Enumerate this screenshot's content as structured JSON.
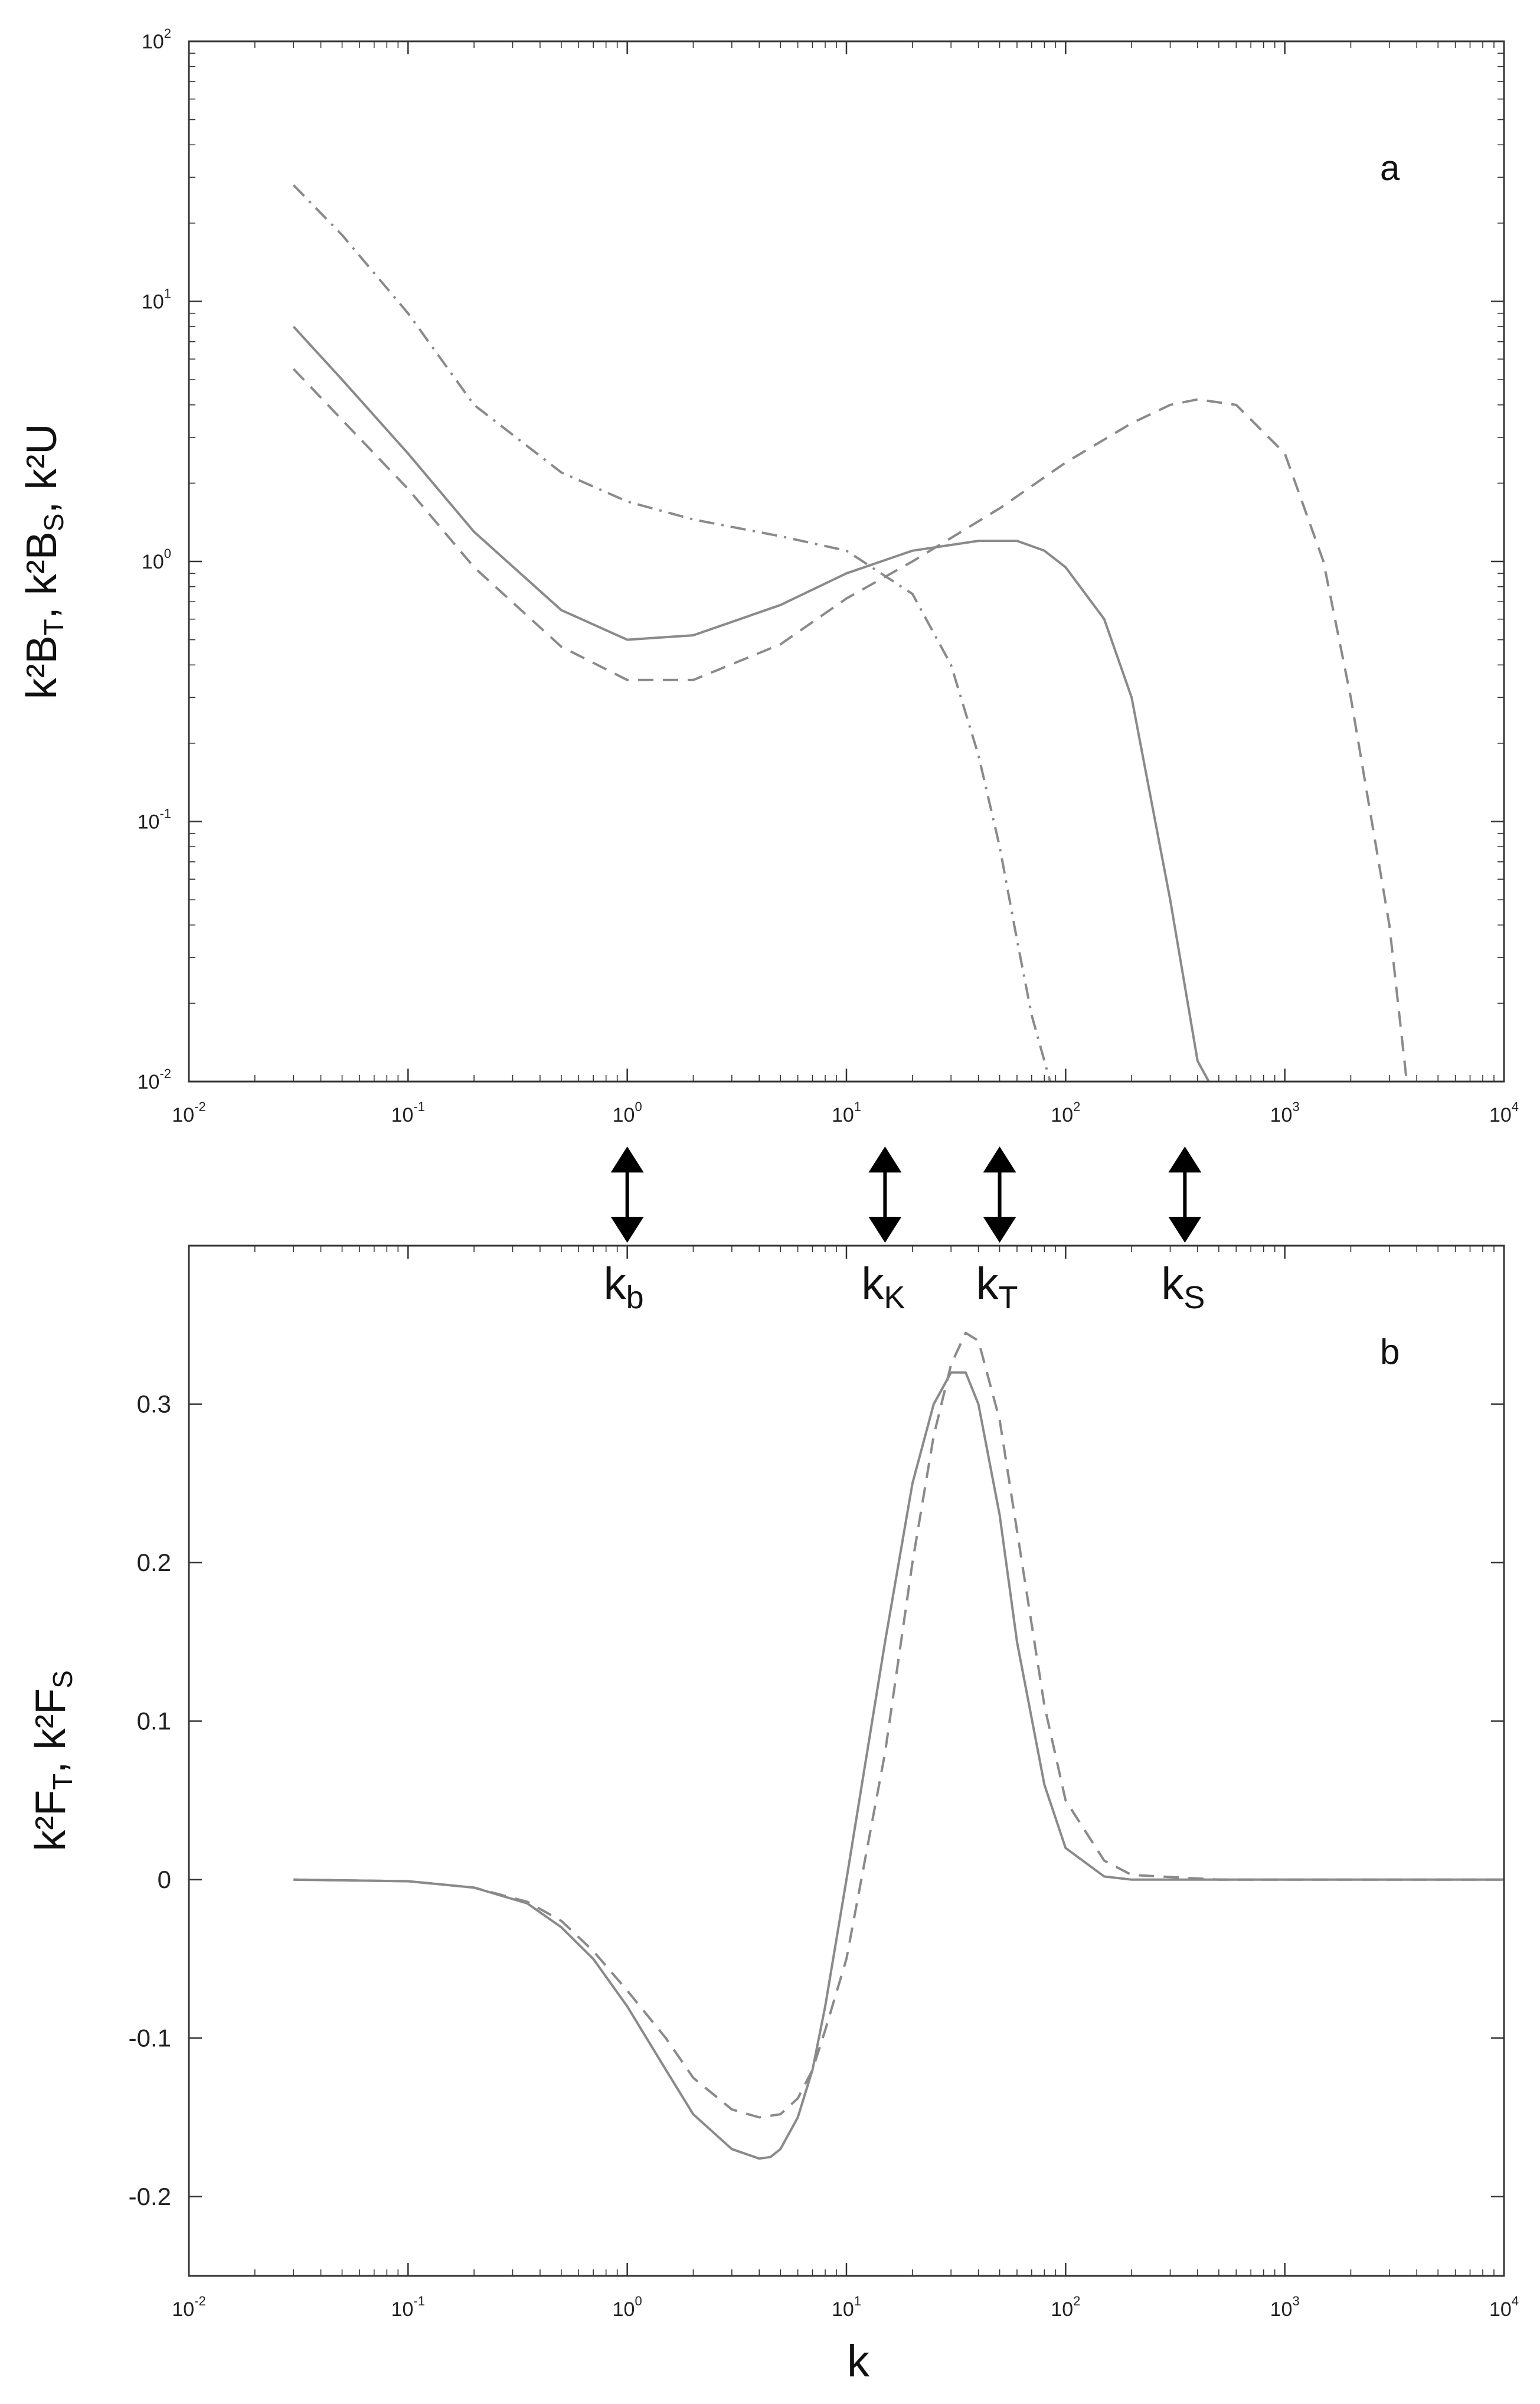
{
  "chart_data": [
    {
      "panel": "a",
      "type": "line",
      "x_scale": "log",
      "y_scale": "log",
      "xlim": [
        0.01,
        10000
      ],
      "ylim": [
        0.01,
        100
      ],
      "x_tick_values": [
        0.01,
        0.1,
        1,
        10,
        100,
        1000,
        10000
      ],
      "x_tick_labels": [
        {
          "base": "10",
          "exp": "-2"
        },
        {
          "base": "10",
          "exp": "-1"
        },
        {
          "base": "10",
          "exp": "0"
        },
        {
          "base": "10",
          "exp": "1"
        },
        {
          "base": "10",
          "exp": "2"
        },
        {
          "base": "10",
          "exp": "3"
        },
        {
          "base": "10",
          "exp": "4"
        }
      ],
      "y_tick_values": [
        0.01,
        0.1,
        1,
        10,
        100
      ],
      "y_tick_labels": [
        {
          "base": "10",
          "exp": "-2"
        },
        {
          "base": "10",
          "exp": "-1"
        },
        {
          "base": "10",
          "exp": "0"
        },
        {
          "base": "10",
          "exp": "1"
        },
        {
          "base": "10",
          "exp": "2"
        }
      ],
      "ylabel": "k²B<sub>T</sub>, k²B<sub>S</sub>, k²U",
      "ylabel_parts": [
        "k²B",
        "T",
        ", k²B",
        "S",
        ", k²U"
      ],
      "series": [
        {
          "style": "solid",
          "x": [
            0.03,
            0.05,
            0.1,
            0.2,
            0.5,
            1,
            2,
            5,
            10,
            20,
            40,
            60,
            80,
            100,
            150,
            200,
            300,
            400,
            450
          ],
          "y": [
            8,
            5,
            2.6,
            1.3,
            0.65,
            0.5,
            0.52,
            0.68,
            0.9,
            1.1,
            1.2,
            1.2,
            1.1,
            0.95,
            0.6,
            0.3,
            0.05,
            0.012,
            0.01
          ]
        },
        {
          "style": "dashed",
          "x": [
            0.03,
            0.05,
            0.1,
            0.2,
            0.5,
            1,
            2,
            5,
            10,
            20,
            50,
            100,
            200,
            300,
            400,
            600,
            1000,
            1500,
            2000,
            3000,
            3600
          ],
          "y": [
            5.5,
            3.5,
            1.9,
            0.95,
            0.47,
            0.35,
            0.35,
            0.48,
            0.72,
            1.0,
            1.6,
            2.4,
            3.4,
            4.0,
            4.2,
            4.0,
            2.6,
            1.0,
            0.3,
            0.04,
            0.01
          ]
        },
        {
          "style": "dash-dot",
          "x": [
            0.03,
            0.05,
            0.1,
            0.2,
            0.5,
            1,
            2,
            5,
            10,
            20,
            30,
            40,
            50,
            60,
            70,
            85
          ],
          "y": [
            28,
            18,
            9,
            4,
            2.2,
            1.7,
            1.45,
            1.25,
            1.1,
            0.75,
            0.4,
            0.18,
            0.08,
            0.035,
            0.018,
            0.01
          ]
        }
      ],
      "annotation": "a",
      "annotation_pos": "top-right"
    },
    {
      "panel": "b",
      "type": "line",
      "x_scale": "log",
      "y_scale": "linear",
      "xlim": [
        0.01,
        10000
      ],
      "ylim": [
        -0.25,
        0.4
      ],
      "x_tick_values": [
        0.01,
        0.1,
        1,
        10,
        100,
        1000,
        10000
      ],
      "x_tick_labels": [
        {
          "base": "10",
          "exp": "-2"
        },
        {
          "base": "10",
          "exp": "-1"
        },
        {
          "base": "10",
          "exp": "0"
        },
        {
          "base": "10",
          "exp": "1"
        },
        {
          "base": "10",
          "exp": "2"
        },
        {
          "base": "10",
          "exp": "3"
        },
        {
          "base": "10",
          "exp": "4"
        }
      ],
      "y_tick_values": [
        -0.2,
        -0.1,
        0,
        0.1,
        0.2,
        0.3
      ],
      "y_tick_labels": [
        "-0.2",
        "-0.1",
        "0",
        "0.1",
        "0.2",
        "0.3"
      ],
      "xlabel": "k",
      "ylabel_parts": [
        "k²F",
        "T",
        ", k²F",
        "S"
      ],
      "series": [
        {
          "style": "solid",
          "x": [
            0.03,
            0.1,
            0.2,
            0.35,
            0.5,
            0.7,
            1,
            1.5,
            2,
            3,
            4,
            4.5,
            5,
            6,
            7,
            8,
            10,
            15,
            20,
            25,
            30,
            35,
            40,
            50,
            60,
            80,
            100,
            150,
            200,
            500,
            1000,
            10000
          ],
          "y": [
            0,
            -0.001,
            -0.005,
            -0.015,
            -0.03,
            -0.05,
            -0.08,
            -0.12,
            -0.148,
            -0.17,
            -0.176,
            -0.175,
            -0.17,
            -0.15,
            -0.12,
            -0.08,
            0.0,
            0.15,
            0.25,
            0.3,
            0.32,
            0.32,
            0.3,
            0.23,
            0.15,
            0.06,
            0.02,
            0.002,
            0,
            0,
            0,
            0
          ]
        },
        {
          "style": "dashed",
          "x": [
            0.03,
            0.1,
            0.2,
            0.35,
            0.5,
            0.7,
            1,
            1.5,
            2,
            3,
            4,
            5,
            6,
            7,
            8,
            10,
            15,
            20,
            25,
            30,
            35,
            40,
            50,
            60,
            80,
            100,
            150,
            200,
            500,
            1000,
            10000
          ],
          "y": [
            0,
            -0.001,
            -0.005,
            -0.014,
            -0.026,
            -0.045,
            -0.07,
            -0.1,
            -0.125,
            -0.145,
            -0.15,
            -0.148,
            -0.138,
            -0.12,
            -0.095,
            -0.05,
            0.08,
            0.2,
            0.28,
            0.325,
            0.345,
            0.34,
            0.29,
            0.22,
            0.11,
            0.05,
            0.012,
            0.003,
            0,
            0,
            0
          ]
        }
      ],
      "annotation": "b",
      "annotation_pos": "top-right"
    }
  ],
  "markers": [
    {
      "k": 1,
      "label": "k",
      "sub": "b"
    },
    {
      "k": 15,
      "label": "k",
      "sub": "K"
    },
    {
      "k": 50,
      "label": "k",
      "sub": "T"
    },
    {
      "k": 350,
      "label": "k",
      "sub": "S"
    }
  ],
  "colors": {
    "axis": "#333333",
    "line": "#8a8a8a",
    "text": "#111111",
    "background": "#ffffff"
  }
}
